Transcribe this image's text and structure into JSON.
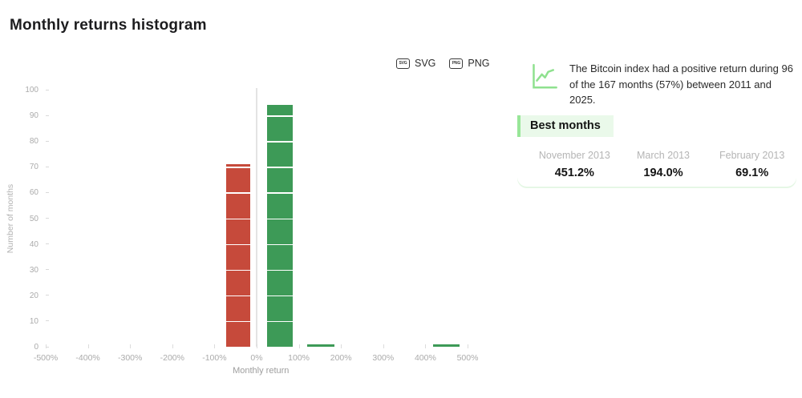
{
  "page": {
    "title": "Monthly returns histogram"
  },
  "toolbar": {
    "svg_label": "SVG",
    "png_label": "PNG"
  },
  "chart_data": {
    "type": "bar",
    "title": "Monthly returns histogram",
    "xlabel": "Monthly return",
    "ylabel": "Number of months",
    "xlim": [
      -500,
      500
    ],
    "ylim": [
      0,
      100
    ],
    "xticks": [
      -500,
      -400,
      -300,
      -200,
      -100,
      0,
      100,
      200,
      300,
      400,
      500
    ],
    "x_tick_labels": [
      "-500%",
      "-400%",
      "-300%",
      "-200%",
      "-100%",
      "0%",
      "100%",
      "200%",
      "300%",
      "400%",
      "500%"
    ],
    "yticks": [
      0,
      10,
      20,
      30,
      40,
      50,
      60,
      70,
      80,
      90,
      100
    ],
    "grid": "zero-line-only",
    "segment_size": 10,
    "colors": {
      "negative": "#c64a3b",
      "positive": "#3d9a57"
    },
    "bars": [
      {
        "bin": "-100% to 0%",
        "from_pct": -72,
        "to_pct": -15,
        "count": 71,
        "kind": "negative"
      },
      {
        "bin": "0% to 100%",
        "from_pct": 25,
        "to_pct": 85,
        "count": 94,
        "kind": "positive"
      },
      {
        "bin": "100% to 200%",
        "from_pct": 120,
        "to_pct": 184,
        "count": 1,
        "kind": "positive"
      },
      {
        "bin": "400% to 500%",
        "from_pct": 418,
        "to_pct": 481,
        "count": 1,
        "kind": "positive"
      }
    ]
  },
  "insight": {
    "text": "The Bitcoin index had a positive return during 96 of the 167 months (57%) between 2011 and 2025."
  },
  "best_months": {
    "heading": "Best months",
    "items": [
      {
        "label": "November 2013",
        "value": "451.2%"
      },
      {
        "label": "March 2013",
        "value": "194.0%"
      },
      {
        "label": "February 2013",
        "value": "69.1%"
      }
    ]
  },
  "accent_colors": {
    "light_green": "#98e698",
    "light_green_bg": "#eaf9ea",
    "zero_line": "#e3e3e3"
  }
}
